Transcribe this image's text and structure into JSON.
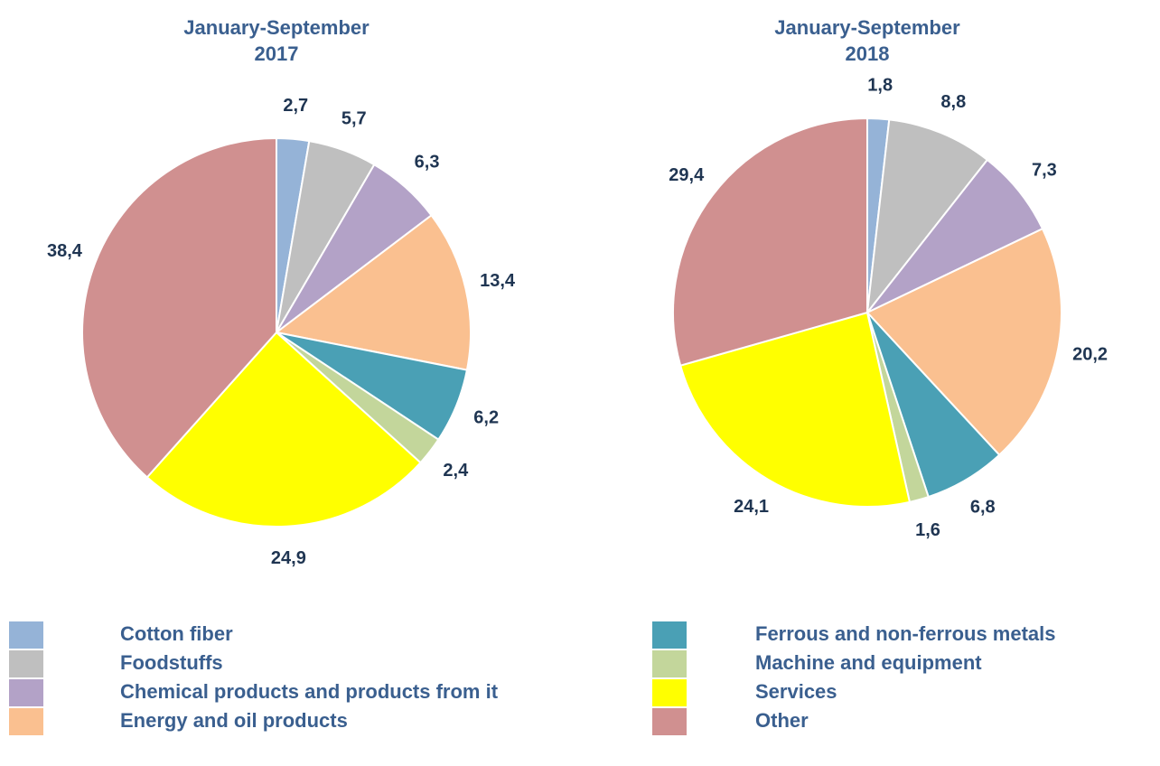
{
  "chart_data": [
    {
      "type": "pie",
      "title": "January-September 2017",
      "values": [
        2.7,
        5.7,
        6.3,
        13.4,
        6.2,
        2.4,
        24.9,
        38.4
      ],
      "value_labels": [
        "2,7",
        "5,7",
        "6,3",
        "13,4",
        "6,2",
        "2,4",
        "24,9",
        "38,4"
      ]
    },
    {
      "type": "pie",
      "title": "January-September 2018",
      "values": [
        1.8,
        8.8,
        7.3,
        20.2,
        6.8,
        1.6,
        24.1,
        29.4
      ],
      "value_labels": [
        "1,8",
        "8,8",
        "7,3",
        "20,2",
        "6,8",
        "1,6",
        "24,1",
        "29,4"
      ]
    }
  ],
  "legend": {
    "labels": [
      "Cotton fiber",
      "Foodstuffs",
      "Chemical products and products from it",
      "Energy and oil products",
      "Ferrous and non-ferrous metals",
      "Machine and equipment",
      "Services",
      "Other"
    ],
    "colors": [
      "#95b3d7",
      "#bfbfbf",
      "#b3a2c7",
      "#fac090",
      "#4aa0b5",
      "#c3d69b",
      "#ffff00",
      "#d09090"
    ]
  }
}
